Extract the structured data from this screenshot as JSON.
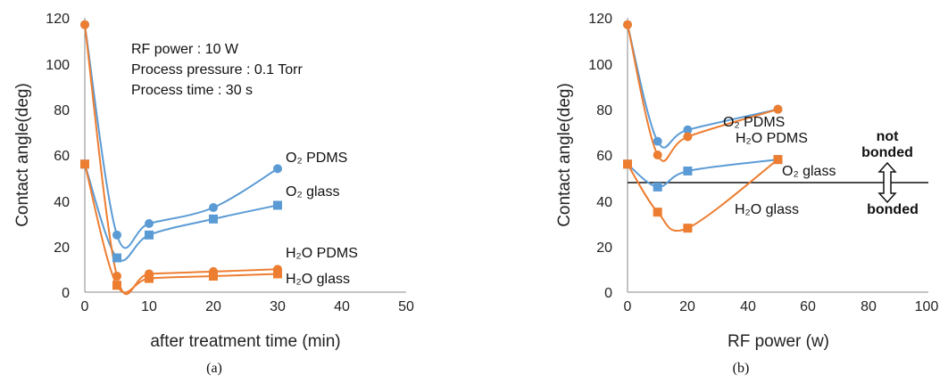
{
  "chart_data": [
    {
      "type": "line",
      "caption": "(a)",
      "xlabel": "after treatment time (min)",
      "ylabel": "Contact angle(deg)",
      "xlim": [
        0,
        50
      ],
      "ylim": [
        0,
        120
      ],
      "xticks": [
        "0",
        "10",
        "20",
        "30",
        "40",
        "50"
      ],
      "yticks": [
        "0",
        "20",
        "40",
        "60",
        "80",
        "100",
        "120"
      ],
      "grid": false,
      "conditions": [
        "RF power : 10 W",
        "Process pressure : 0.1 Torr",
        "Process time : 30 s"
      ],
      "series": [
        {
          "name": "O₂ PDMS",
          "color": "#5b9bd5",
          "marker": "circle",
          "x": [
            0,
            5,
            10,
            20,
            30
          ],
          "y": [
            117,
            25,
            30,
            37,
            54
          ]
        },
        {
          "name": "O₂ glass",
          "color": "#5b9bd5",
          "marker": "square",
          "x": [
            0,
            5,
            10,
            20,
            30
          ],
          "y": [
            56,
            15,
            25,
            32,
            38
          ]
        },
        {
          "name": "H₂O PDMS",
          "color": "#ed7d31",
          "marker": "circle",
          "x": [
            0,
            5,
            10,
            20,
            30
          ],
          "y": [
            117,
            7,
            8,
            9,
            10
          ]
        },
        {
          "name": "H₂O glass",
          "color": "#ed7d31",
          "marker": "square",
          "x": [
            0,
            5,
            10,
            20,
            30
          ],
          "y": [
            56,
            3,
            6,
            7,
            8
          ]
        }
      ]
    },
    {
      "type": "line",
      "caption": "(b)",
      "xlabel": "RF power (w)",
      "ylabel": "Contact angle(deg)",
      "xlim": [
        0,
        100
      ],
      "ylim": [
        0,
        120
      ],
      "xticks": [
        "0",
        "20",
        "40",
        "60",
        "80",
        "100"
      ],
      "yticks": [
        "0",
        "20",
        "40",
        "60",
        "80",
        "100",
        "120"
      ],
      "grid": false,
      "threshold": {
        "y": 48,
        "above_label": [
          "not",
          "bonded"
        ],
        "below_label": "bonded"
      },
      "series": [
        {
          "name": "O₂ PDMS",
          "color": "#5b9bd5",
          "marker": "circle",
          "x": [
            0,
            10,
            20,
            50
          ],
          "y": [
            117,
            66,
            71,
            80
          ]
        },
        {
          "name": "H₂O PDMS",
          "color": "#ed7d31",
          "marker": "circle",
          "x": [
            0,
            10,
            20,
            50
          ],
          "y": [
            117,
            60,
            68,
            80
          ]
        },
        {
          "name": "O₂ glass",
          "color": "#5b9bd5",
          "marker": "square",
          "x": [
            0,
            10,
            20,
            50
          ],
          "y": [
            56,
            46,
            53,
            58
          ]
        },
        {
          "name": "H₂O glass",
          "color": "#ed7d31",
          "marker": "square",
          "x": [
            0,
            10,
            20,
            50
          ],
          "y": [
            56,
            35,
            28,
            58
          ]
        }
      ]
    }
  ]
}
